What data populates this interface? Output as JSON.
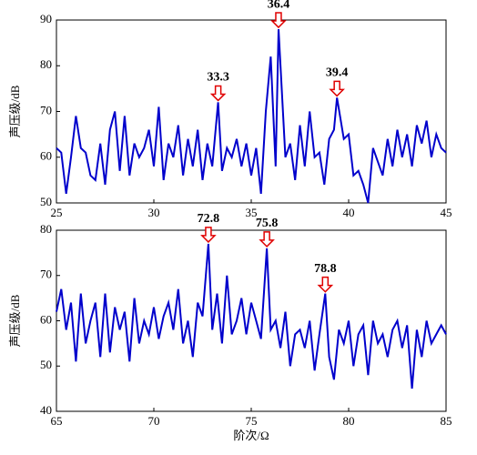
{
  "chart_data": [
    {
      "type": "line",
      "y_label": "声压级/dB",
      "color": "#0000cc",
      "x": [
        25,
        25.25,
        25.5,
        25.75,
        26,
        26.25,
        26.5,
        26.75,
        27,
        27.25,
        27.5,
        27.75,
        28,
        28.25,
        28.5,
        28.75,
        29,
        29.25,
        29.5,
        29.75,
        30,
        30.25,
        30.5,
        30.75,
        31,
        31.25,
        31.5,
        31.75,
        32,
        32.25,
        32.5,
        32.75,
        33,
        33.3,
        33.5,
        33.75,
        34,
        34.25,
        34.5,
        34.75,
        35,
        35.25,
        35.5,
        35.75,
        36,
        36.25,
        36.4,
        36.75,
        37,
        37.25,
        37.5,
        37.75,
        38,
        38.25,
        38.5,
        38.75,
        39,
        39.25,
        39.4,
        39.75,
        40,
        40.25,
        40.5,
        40.75,
        41,
        41.25,
        41.5,
        41.75,
        42,
        42.25,
        42.5,
        42.75,
        43,
        43.25,
        43.5,
        43.75,
        44,
        44.25,
        44.5,
        44.75,
        45
      ],
      "values": [
        62,
        61,
        52,
        60,
        69,
        62,
        61,
        56,
        55,
        63,
        54,
        66,
        70,
        57,
        69,
        56,
        63,
        60,
        62,
        66,
        58,
        71,
        55,
        63,
        60,
        67,
        56,
        64,
        58,
        66,
        55,
        63,
        58,
        72,
        57,
        62,
        60,
        64,
        58,
        63,
        56,
        62,
        52,
        70,
        82,
        58,
        88,
        60,
        63,
        55,
        67,
        58,
        70,
        60,
        61,
        54,
        64,
        66,
        73,
        64,
        65,
        56,
        57,
        54,
        50,
        62,
        59,
        56,
        64,
        58,
        66,
        60,
        65,
        58,
        67,
        63,
        68,
        60,
        65,
        62,
        61
      ],
      "xlim": [
        25,
        45
      ],
      "xticks": [
        25,
        30,
        35,
        40,
        45
      ],
      "ylim": [
        50,
        90
      ],
      "yticks": [
        50,
        60,
        70,
        80,
        90
      ],
      "annotations": [
        {
          "text": "33.3",
          "x": 33.3,
          "y": 72
        },
        {
          "text": "36.4",
          "x": 36.4,
          "y": 88
        },
        {
          "text": "39.4",
          "x": 39.4,
          "y": 73
        }
      ]
    },
    {
      "type": "line",
      "y_label": "声压级/dB",
      "x_label": "阶次/Ω",
      "color": "#0000cc",
      "x": [
        65,
        65.25,
        65.5,
        65.75,
        66,
        66.25,
        66.5,
        66.75,
        67,
        67.25,
        67.5,
        67.75,
        68,
        68.25,
        68.5,
        68.75,
        69,
        69.25,
        69.5,
        69.75,
        70,
        70.25,
        70.5,
        70.75,
        71,
        71.25,
        71.5,
        71.75,
        72,
        72.25,
        72.5,
        72.8,
        73,
        73.25,
        73.5,
        73.75,
        74,
        74.25,
        74.5,
        74.75,
        75,
        75.25,
        75.5,
        75.8,
        76,
        76.25,
        76.5,
        76.75,
        77,
        77.25,
        77.5,
        77.75,
        78,
        78.25,
        78.5,
        78.8,
        79,
        79.25,
        79.5,
        79.75,
        80,
        80.25,
        80.5,
        80.75,
        81,
        81.25,
        81.5,
        81.75,
        82,
        82.25,
        82.5,
        82.75,
        83,
        83.25,
        83.5,
        83.75,
        84,
        84.25,
        84.5,
        84.75,
        85
      ],
      "values": [
        62,
        67,
        58,
        64,
        51,
        66,
        55,
        60,
        64,
        52,
        66,
        53,
        63,
        58,
        62,
        51,
        65,
        55,
        60,
        57,
        63,
        56,
        61,
        64,
        58,
        67,
        55,
        60,
        52,
        64,
        61,
        77,
        58,
        66,
        55,
        70,
        57,
        60,
        65,
        57,
        64,
        60,
        56,
        76,
        58,
        60,
        54,
        62,
        50,
        57,
        58,
        54,
        60,
        49,
        57,
        66,
        52,
        47,
        58,
        55,
        60,
        50,
        57,
        59,
        48,
        60,
        55,
        57,
        52,
        58,
        60,
        54,
        59,
        45,
        58,
        52,
        60,
        55,
        57,
        59,
        57
      ],
      "xlim": [
        65,
        85
      ],
      "xticks": [
        65,
        70,
        75,
        80,
        85
      ],
      "ylim": [
        40,
        80
      ],
      "yticks": [
        40,
        50,
        60,
        70,
        80
      ],
      "annotations": [
        {
          "text": "72.8",
          "x": 72.8,
          "y": 77
        },
        {
          "text": "75.8",
          "x": 75.8,
          "y": 76
        },
        {
          "text": "78.8",
          "x": 78.8,
          "y": 66
        }
      ]
    }
  ]
}
